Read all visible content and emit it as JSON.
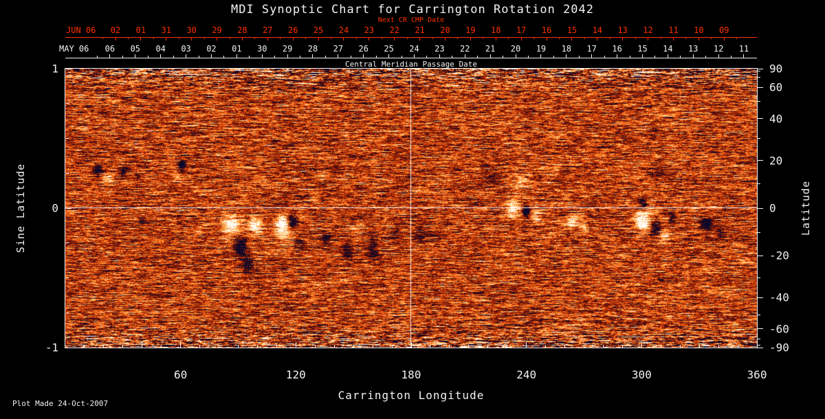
{
  "footer": "Plot Made 24-Oct-2007",
  "colors": {
    "background": "#000000",
    "axis": "#f2f2f2",
    "red_axis": "#ff3000",
    "grid_line": "#ffffff",
    "positive_polarity": "#ffffff",
    "negative_polarity": "#000020",
    "field_background": "#d24a0a"
  },
  "chart_data": {
    "type": "heatmap",
    "title": "MDI Synoptic Chart for Carrington Rotation 2042",
    "description": "Solar line-of-sight magnetic field synoptic map; orange noise background, white blobs = positive polarity active regions, dark blobs = negative polarity",
    "xlabel": "Carrington Longitude",
    "ylabel_left": "Sine Latitude",
    "ylabel_right": "Latitude",
    "xlim": [
      0,
      360
    ],
    "ylim": [
      -1,
      1
    ],
    "x_ticks": [
      60,
      120,
      180,
      240,
      300,
      360
    ],
    "x_minor_step": 10,
    "left_ticks": [
      {
        "value": 1,
        "label": "1"
      },
      {
        "value": 0,
        "label": "0"
      },
      {
        "value": -1,
        "label": "-1"
      }
    ],
    "left_minor_values": [
      0.75,
      0.5,
      0.25,
      -0.25,
      -0.5,
      -0.75
    ],
    "right_ticks": [
      {
        "lat": 90,
        "label": "90"
      },
      {
        "lat": 60,
        "label": "60"
      },
      {
        "lat": 40,
        "label": "40"
      },
      {
        "lat": 20,
        "label": "20"
      },
      {
        "lat": 0,
        "label": "0"
      },
      {
        "lat": -20,
        "label": "-20"
      },
      {
        "lat": -40,
        "label": "-40"
      },
      {
        "lat": -60,
        "label": "-60"
      },
      {
        "lat": -90,
        "label": "-90"
      }
    ],
    "right_minor_lats": [
      80,
      70,
      50,
      30,
      10,
      -10,
      -30,
      -50,
      -70,
      -80
    ],
    "grid": {
      "vertical_longitude": 180,
      "horizontal_sine_latitude": 0
    },
    "rotation_days": 27.2753,
    "top_axis": {
      "caption": "Next CR CMP Date",
      "month_label": "JUN 06",
      "first_tick_day_offset": 1.98,
      "day_labels": [
        "02",
        "01",
        "31",
        "30",
        "29",
        "28",
        "27",
        "26",
        "25",
        "24",
        "23",
        "22",
        "21",
        "20",
        "19",
        "18",
        "17",
        "16",
        "15",
        "14",
        "13",
        "12",
        "11",
        "10",
        "09"
      ]
    },
    "date_axis": {
      "caption": "Central Meridian Passage Date",
      "month_label": "MAY 06",
      "first_tick_day_offset": 1.76,
      "day_labels": [
        "06",
        "05",
        "04",
        "03",
        "02",
        "01",
        "30",
        "29",
        "28",
        "27",
        "26",
        "25",
        "24",
        "23",
        "22",
        "21",
        "20",
        "19",
        "18",
        "17",
        "16",
        "15",
        "14",
        "13",
        "12",
        "11"
      ]
    },
    "active_regions": [
      {
        "lon": 17,
        "slat": 0.27,
        "rlon": 2.5,
        "rslat": 0.035,
        "amp": -1.0
      },
      {
        "lon": 22,
        "slat": 0.21,
        "rlon": 3.5,
        "rslat": 0.05,
        "amp": 0.45
      },
      {
        "lon": 30,
        "slat": 0.26,
        "rlon": 2.2,
        "rslat": 0.03,
        "amp": -0.85
      },
      {
        "lon": 38,
        "slat": 0.23,
        "rlon": 1.6,
        "rslat": 0.025,
        "amp": -0.5
      },
      {
        "lon": 61,
        "slat": 0.3,
        "rlon": 2.2,
        "rslat": 0.035,
        "amp": -1.1
      },
      {
        "lon": 58,
        "slat": 0.24,
        "rlon": 3.0,
        "rslat": 0.05,
        "amp": 0.4
      },
      {
        "lon": 40,
        "slat": -0.09,
        "rlon": 1.4,
        "rslat": 0.02,
        "amp": -0.6
      },
      {
        "lon": 86,
        "slat": -0.12,
        "rlon": 4.0,
        "rslat": 0.06,
        "amp": 0.85
      },
      {
        "lon": 91,
        "slat": -0.27,
        "rlon": 3.2,
        "rslat": 0.07,
        "amp": -1.25
      },
      {
        "lon": 95,
        "slat": -0.4,
        "rlon": 3.5,
        "rslat": 0.06,
        "amp": -0.8
      },
      {
        "lon": 99,
        "slat": -0.12,
        "rlon": 3.2,
        "rslat": 0.05,
        "amp": 1.15
      },
      {
        "lon": 88,
        "slat": -0.2,
        "rlon": 6.0,
        "rslat": 0.1,
        "amp": 0.35
      },
      {
        "lon": 113,
        "slat": -0.12,
        "rlon": 3.6,
        "rslat": 0.06,
        "amp": 1.35
      },
      {
        "lon": 118,
        "slat": -0.1,
        "rlon": 2.6,
        "rslat": 0.05,
        "amp": -1.1
      },
      {
        "lon": 122,
        "slat": -0.25,
        "rlon": 2.6,
        "rslat": 0.05,
        "amp": -0.75
      },
      {
        "lon": 116,
        "slat": -0.2,
        "rlon": 6.0,
        "rslat": 0.1,
        "amp": 0.3
      },
      {
        "lon": 136,
        "slat": -0.22,
        "rlon": 2.4,
        "rslat": 0.045,
        "amp": -0.6
      },
      {
        "lon": 147,
        "slat": -0.32,
        "rlon": 2.6,
        "rslat": 0.05,
        "amp": -0.65
      },
      {
        "lon": 160,
        "slat": -0.3,
        "rlon": 2.2,
        "rslat": 0.06,
        "amp": -0.6
      },
      {
        "lon": 152,
        "slat": -0.15,
        "rlon": 3.0,
        "rslat": 0.05,
        "amp": 0.35
      },
      {
        "lon": 172,
        "slat": -0.18,
        "rlon": 2.4,
        "rslat": 0.05,
        "amp": -0.4
      },
      {
        "lon": 185,
        "slat": -0.2,
        "rlon": 3.0,
        "rslat": 0.06,
        "amp": -0.45
      },
      {
        "lon": 222,
        "slat": 0.22,
        "rlon": 5.0,
        "rslat": 0.07,
        "amp": -0.35
      },
      {
        "lon": 237,
        "slat": 0.18,
        "rlon": 5.0,
        "rslat": 0.08,
        "amp": 0.35
      },
      {
        "lon": 252,
        "slat": 0.26,
        "rlon": 4.0,
        "rslat": 0.06,
        "amp": 0.3
      },
      {
        "lon": 233,
        "slat": 0.0,
        "rlon": 3.5,
        "rslat": 0.06,
        "amp": 0.85
      },
      {
        "lon": 240,
        "slat": -0.02,
        "rlon": 1.8,
        "rslat": 0.035,
        "amp": -1.3
      },
      {
        "lon": 245,
        "slat": -0.06,
        "rlon": 2.6,
        "rslat": 0.045,
        "amp": 0.6
      },
      {
        "lon": 264,
        "slat": -0.1,
        "rlon": 2.8,
        "rslat": 0.05,
        "amp": 0.8
      },
      {
        "lon": 270,
        "slat": -0.14,
        "rlon": 2.4,
        "rslat": 0.045,
        "amp": 0.6
      },
      {
        "lon": 301,
        "slat": 0.04,
        "rlon": 2.2,
        "rslat": 0.04,
        "amp": -0.85
      },
      {
        "lon": 300,
        "slat": -0.1,
        "rlon": 3.6,
        "rslat": 0.065,
        "amp": 1.25
      },
      {
        "lon": 307,
        "slat": -0.14,
        "rlon": 2.8,
        "rslat": 0.055,
        "amp": -1.05
      },
      {
        "lon": 312,
        "slat": -0.2,
        "rlon": 2.6,
        "rslat": 0.05,
        "amp": 0.7
      },
      {
        "lon": 316,
        "slat": -0.07,
        "rlon": 2.0,
        "rslat": 0.04,
        "amp": -0.6
      },
      {
        "lon": 305,
        "slat": -0.08,
        "rlon": 6.0,
        "rslat": 0.1,
        "amp": 0.3
      },
      {
        "lon": 308,
        "slat": 0.27,
        "rlon": 4.0,
        "rslat": 0.06,
        "amp": -0.3
      },
      {
        "lon": 334,
        "slat": -0.12,
        "rlon": 2.6,
        "rslat": 0.05,
        "amp": -0.95
      },
      {
        "lon": 341,
        "slat": -0.17,
        "rlon": 2.0,
        "rslat": 0.04,
        "amp": -0.55
      }
    ]
  }
}
